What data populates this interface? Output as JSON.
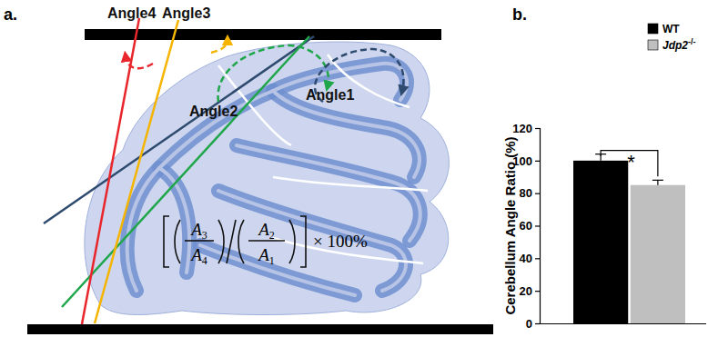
{
  "chart_data": {
    "type": "bar",
    "y_label": "Cerebellum Angle Ratio (%)",
    "annotations": [
      "b.",
      "*"
    ],
    "categories": [
      null
    ],
    "series": [
      {
        "name": "WT",
        "color": "#000000",
        "values": [
          100
        ],
        "errors": [
          4
        ]
      },
      {
        "name": "Jdp2-/-",
        "color": "#bfbfbf",
        "values": [
          85
        ],
        "errors": [
          3
        ]
      }
    ],
    "ylim": [
      0,
      120
    ],
    "yticks": [
      0,
      20,
      40,
      60,
      80,
      100,
      120
    ],
    "grid": false,
    "legend": "upper right",
    "tick_labels": "y"
  },
  "diagram": {
    "panel_label": "a.",
    "angles": [
      "Angle1",
      "Angle2",
      "Angle3",
      "Angle4"
    ],
    "formula": {
      "terms": [
        "A3",
        "A4",
        "A2",
        "A1"
      ],
      "suffix": "× 100%"
    }
  }
}
